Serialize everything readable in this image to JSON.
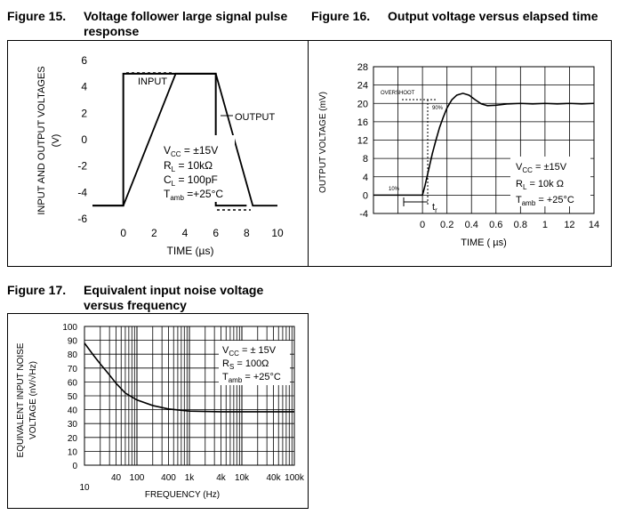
{
  "figures": [
    {
      "number": "Figure 15.",
      "title_line1": "Voltage follower large signal pulse",
      "title_line2": "response",
      "chart_data": {
        "type": "line",
        "xlabel": "TIME (µs)",
        "ylabel_line1": "INPUT AND OUTPUT VOLTAGES",
        "ylabel_line2": "(V)",
        "xlim": [
          -2,
          10
        ],
        "ylim": [
          -6,
          6
        ],
        "xticks": [
          0,
          2,
          4,
          6,
          8,
          10
        ],
        "yticks": [
          6,
          4,
          2,
          0,
          -2,
          -4,
          -6
        ],
        "series": [
          {
            "name": "INPUT",
            "x": [
              -2,
              0,
              0,
              6,
              6,
              8
            ],
            "y": [
              -5,
              -5,
              5,
              5,
              -5,
              -5
            ]
          },
          {
            "name": "OUTPUT",
            "x": [
              -2,
              0,
              3.4,
              6,
              8.4,
              10
            ],
            "y": [
              -5,
              -5,
              5,
              5,
              -5,
              -5
            ]
          }
        ],
        "conditions": [
          {
            "label": "V",
            "sub": "CC",
            "value": " = ±15V"
          },
          {
            "label": "R",
            "sub": "L",
            "value": " = 10kΩ"
          },
          {
            "label": "C",
            "sub": "L",
            "value": " = 100pF"
          },
          {
            "label": "T",
            "sub": "amb",
            "value": " =+25°C"
          }
        ]
      }
    },
    {
      "number": "Figure 16.",
      "title_line1": "Output voltage versus elapsed time",
      "chart_data": {
        "type": "line",
        "xlabel": "TIME ( µs)",
        "ylabel": "OUTPUT VOLTAGE (mV)",
        "xlim": [
          -0.4,
          1.4
        ],
        "ylim": [
          -4,
          28
        ],
        "xticks": [
          "0",
          "0.2",
          "0.4",
          "0.6",
          "0.8",
          "1",
          "12",
          "14"
        ],
        "yticks": [
          28,
          24,
          20,
          16,
          12,
          8,
          4,
          0,
          -4
        ],
        "series": [
          {
            "x": [
              -0.4,
              0.0,
              0.02,
              0.05,
              0.08,
              0.11,
              0.14,
              0.17,
              0.2,
              0.24,
              0.28,
              0.33,
              0.38,
              0.43,
              0.48,
              0.53,
              0.6,
              0.7,
              0.8,
              0.9,
              1.0,
              1.1,
              1.2,
              1.3,
              1.4
            ],
            "y": [
              0,
              0,
              2,
              5.5,
              9,
              12,
              14.8,
              17,
              19,
              20.8,
              21.8,
              22.2,
              21.8,
              20.8,
              19.9,
              19.5,
              19.6,
              19.9,
              20.0,
              19.9,
              20.0,
              19.9,
              20.0,
              19.9,
              20.0
            ]
          }
        ],
        "annotations": {
          "overshoot": "OVERSHOOT",
          "p10": "10%",
          "p90": "90%",
          "tr_label": "t",
          "tr_sub": "r"
        },
        "conditions": [
          {
            "label": "V",
            "sub": "CC",
            "value": " = ±15V"
          },
          {
            "label": "R",
            "sub": "L",
            "value": " = 10k Ω"
          },
          {
            "label": "T",
            "sub": "amb",
            "value": " = +25°C"
          }
        ]
      }
    },
    {
      "number": "Figure 17.",
      "title_line1": "Equivalent input noise voltage",
      "title_line2": "versus frequency",
      "chart_data": {
        "type": "line",
        "xlabel": "FREQUENCY (Hz)",
        "ylabel_line1": "EQUIVALENT INPUT NOISE",
        "ylabel_line2": "VOLTAGE (nV/√Hz)",
        "xscale": "log",
        "xlim": [
          10,
          100000
        ],
        "ylim": [
          0,
          100
        ],
        "xticks": [
          "10",
          "40",
          "100",
          "400",
          "1k",
          "4k",
          "10k",
          "40k",
          "100k"
        ],
        "yticks": [
          100,
          90,
          80,
          70,
          60,
          50,
          40,
          30,
          20,
          10,
          0
        ],
        "series": [
          {
            "x": [
              10,
              15,
              20,
              30,
              40,
              60,
              100,
              200,
              400,
              1000,
              4000,
              10000,
              40000,
              100000
            ],
            "y": [
              88,
              79,
              73,
              65,
              59,
              52,
              47,
              43,
              40.5,
              39,
              38.5,
              38.5,
              38.5,
              38.5
            ]
          }
        ],
        "conditions": [
          {
            "label": "V",
            "sub": "CC",
            "value": " = ± 15V"
          },
          {
            "label": "R",
            "sub": "S",
            "value": " = 100Ω"
          },
          {
            "label": "T",
            "sub": "amb",
            "value": " = +25°C"
          }
        ]
      }
    }
  ]
}
